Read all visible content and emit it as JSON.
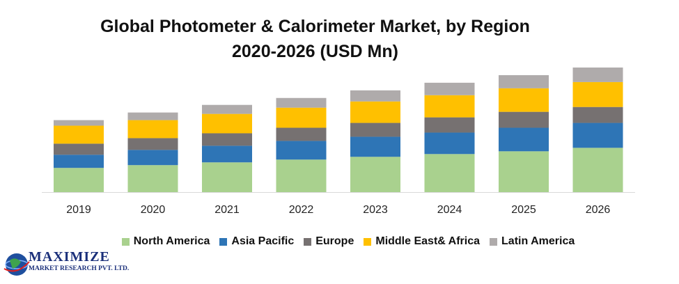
{
  "title_line1": "Global Photometer & Calorimeter Market, by Region",
  "title_line2": "2020-2026 (USD Mn)",
  "logo": {
    "name": "MAXIMIZE",
    "sub": "MARKET RESEARCH PVT. LTD."
  },
  "colors": {
    "North America": "#a9d18e",
    "Asia Pacific": "#2e75b6",
    "Europe": "#767171",
    "Middle East& Africa": "#ffc000",
    "Latin America": "#afabab"
  },
  "chart_data": {
    "type": "bar",
    "stacked": true,
    "categories": [
      "2019",
      "2020",
      "2021",
      "2022",
      "2023",
      "2024",
      "2025",
      "2026"
    ],
    "series": [
      {
        "name": "North America",
        "values": [
          35,
          39,
          43,
          47,
          51,
          55,
          59,
          64
        ]
      },
      {
        "name": "Asia Pacific",
        "values": [
          19,
          22,
          24,
          27,
          29,
          31,
          34,
          36
        ]
      },
      {
        "name": "Europe",
        "values": [
          16,
          17,
          18,
          19,
          20,
          22,
          23,
          23
        ]
      },
      {
        "name": "Middle East& Africa",
        "values": [
          26,
          26,
          28,
          29,
          31,
          32,
          34,
          36
        ]
      },
      {
        "name": "Latin America",
        "values": [
          8,
          11,
          13,
          14,
          16,
          18,
          19,
          21
        ]
      }
    ],
    "ylim": [
      0,
      180
    ],
    "grid": false,
    "legend": "bottom"
  }
}
